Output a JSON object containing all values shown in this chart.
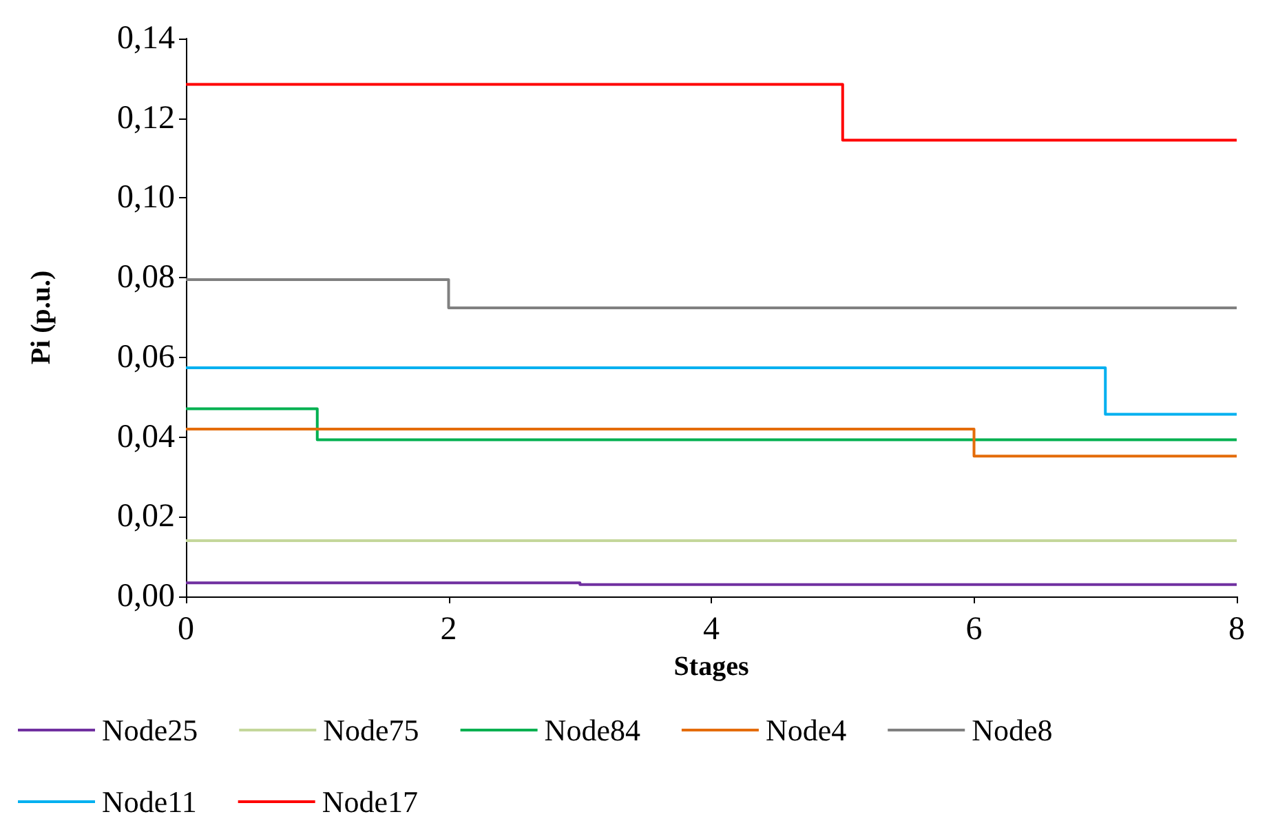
{
  "chart_data": {
    "type": "step",
    "xlabel": "Stages",
    "ylabel": "Pi (p.u.)",
    "xlim": [
      0,
      8
    ],
    "xticks": [
      0,
      2,
      4,
      6,
      8
    ],
    "ylim": [
      0,
      0.14
    ],
    "yticks": [
      {
        "value": 0,
        "label": "0,00"
      },
      {
        "value": 0.02,
        "label": "0,02"
      },
      {
        "value": 0.04,
        "label": "0,04"
      },
      {
        "value": 0.06,
        "label": "0,06"
      },
      {
        "value": 0.08,
        "label": "0,08"
      },
      {
        "value": 0.1,
        "label": "0,10"
      },
      {
        "value": 0.12,
        "label": "0,12"
      },
      {
        "value": 0.14,
        "label": "0,14"
      }
    ],
    "grid": false,
    "legend": "bottom",
    "marker": "none",
    "line_style": "solid",
    "series": [
      {
        "name": "Node25",
        "color": "#7030a0",
        "x": [
          0,
          3,
          8
        ],
        "values": [
          0.0034,
          0.003,
          0.003
        ]
      },
      {
        "name": "Node75",
        "color": "#c4d79b",
        "x": [
          0,
          8
        ],
        "values": [
          0.014,
          0.014
        ]
      },
      {
        "name": "Node84",
        "color": "#00b050",
        "x": [
          0,
          1,
          8
        ],
        "values": [
          0.0471,
          0.0393,
          0.0393
        ]
      },
      {
        "name": "Node4",
        "color": "#e46c0a",
        "x": [
          0,
          6,
          8
        ],
        "values": [
          0.042,
          0.0352,
          0.0352
        ]
      },
      {
        "name": "Node8",
        "color": "#808080",
        "x": [
          0,
          2,
          8
        ],
        "values": [
          0.0795,
          0.0724,
          0.0724
        ]
      },
      {
        "name": "Node11",
        "color": "#00b0f0",
        "x": [
          0,
          7,
          8
        ],
        "values": [
          0.0574,
          0.0457,
          0.0457
        ]
      },
      {
        "name": "Node17",
        "color": "#ff0000",
        "x": [
          0,
          5,
          8
        ],
        "values": [
          0.1285,
          0.1145,
          0.1145
        ]
      }
    ]
  }
}
